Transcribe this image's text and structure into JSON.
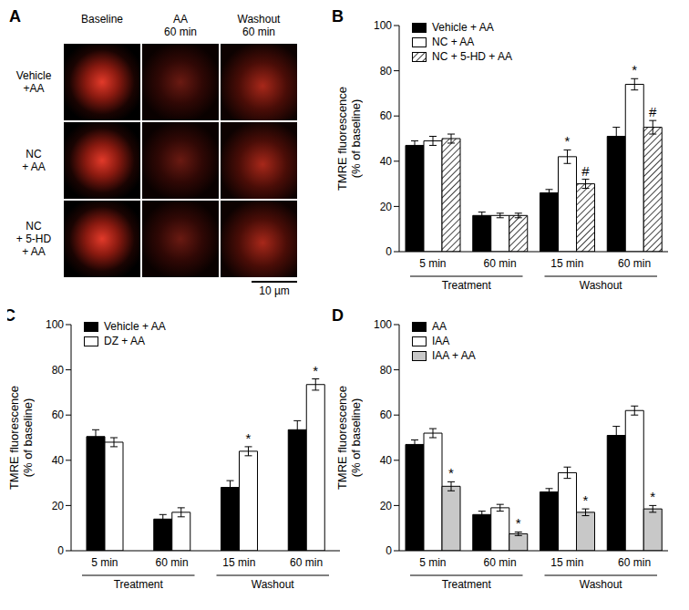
{
  "image_panel": {
    "label": "A",
    "columns": [
      [
        "Baseline"
      ],
      [
        "AA",
        "60 min"
      ],
      [
        "Washout",
        "60 min"
      ]
    ],
    "rows": [
      [
        "Vehicle",
        "+AA"
      ],
      [
        "NC",
        "+ AA"
      ],
      [
        "NC",
        "+ 5-HD",
        "+ AA"
      ]
    ],
    "scale_bar": "10 µm"
  },
  "chart_data": [
    {
      "label": "B",
      "type": "bar",
      "y_label": [
        "TMRE fluorescence",
        "(% of baseline)"
      ],
      "categories": [
        "5 min",
        "60 min",
        "15 min",
        "60 min"
      ],
      "category_groups": [
        "Treatment",
        "Treatment",
        "Washout",
        "Washout"
      ],
      "ylim": [
        0,
        100
      ],
      "yticks": [
        0,
        20,
        40,
        60,
        80,
        100
      ],
      "legend": "upper left",
      "series": [
        {
          "name": "Vehicle + AA",
          "color": "#000000",
          "values": [
            47,
            16,
            26,
            51
          ],
          "errors": [
            2,
            1.5,
            1.5,
            4
          ]
        },
        {
          "name": "NC + AA",
          "color": "#ffffff",
          "values": [
            49,
            16,
            42,
            74
          ],
          "errors": [
            2,
            1,
            3,
            2.5
          ],
          "significance": [
            null,
            null,
            "*",
            "*"
          ]
        },
        {
          "name": "NC + 5-HD + AA",
          "color": "#ffffff",
          "values": [
            50,
            16,
            30,
            55
          ],
          "errors": [
            2,
            1,
            2,
            3
          ],
          "significance": [
            null,
            null,
            "#",
            "#"
          ]
        }
      ]
    },
    {
      "label": "C",
      "type": "bar",
      "y_label": [
        "TMRE fluorescence",
        "(% of baseline)"
      ],
      "categories": [
        "5 min",
        "60 min",
        "15 min",
        "60 min"
      ],
      "category_groups": [
        "Treatment",
        "Treatment",
        "Washout",
        "Washout"
      ],
      "ylim": [
        0,
        100
      ],
      "yticks": [
        0,
        20,
        40,
        60,
        80,
        100
      ],
      "legend": "upper left",
      "series": [
        {
          "name": "Vehicle + AA",
          "color": "#000000",
          "values": [
            50.5,
            14,
            28,
            53.5
          ],
          "errors": [
            3,
            2,
            3,
            4
          ]
        },
        {
          "name": "DZ + AA",
          "color": "#ffffff",
          "values": [
            48,
            17,
            44,
            73.5
          ],
          "errors": [
            2,
            2,
            2,
            2.5
          ],
          "significance": [
            null,
            null,
            "*",
            "*"
          ]
        }
      ]
    },
    {
      "label": "D",
      "type": "bar",
      "y_label": [
        "TMRE fluorescence",
        "(% of baseline)"
      ],
      "categories": [
        "5 min",
        "60 min",
        "15 min",
        "60 min"
      ],
      "category_groups": [
        "Treatment",
        "Treatment",
        "Washout",
        "Washout"
      ],
      "ylim": [
        0,
        100
      ],
      "yticks": [
        0,
        20,
        40,
        60,
        80,
        100
      ],
      "legend": "upper left",
      "series": [
        {
          "name": "AA",
          "color": "#000000",
          "values": [
            47,
            16,
            26,
            51
          ],
          "errors": [
            2,
            1.5,
            1.5,
            4
          ]
        },
        {
          "name": "IAA",
          "color": "#ffffff",
          "values": [
            52,
            19,
            34.5,
            62
          ],
          "errors": [
            2,
            1.5,
            2.5,
            2
          ]
        },
        {
          "name": "IAA + AA",
          "color": "#c8c8c8",
          "values": [
            28.5,
            7.5,
            17,
            18.5
          ],
          "errors": [
            2,
            0.8,
            1.5,
            1.5
          ],
          "significance": [
            "*",
            "*",
            "*",
            "*"
          ]
        }
      ]
    }
  ]
}
